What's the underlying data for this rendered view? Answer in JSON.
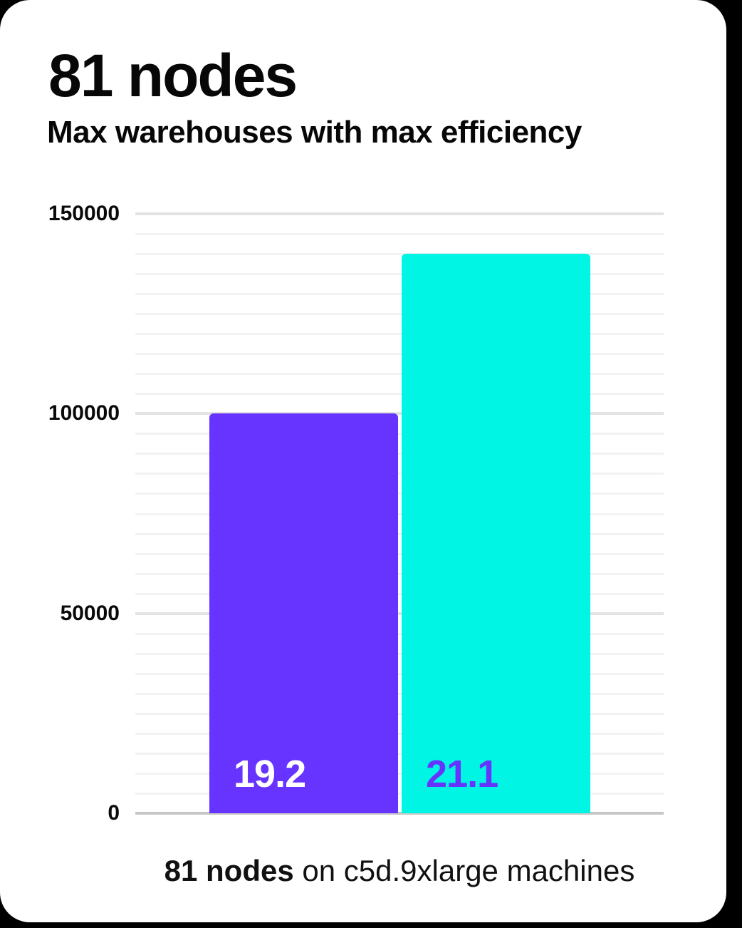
{
  "header": {
    "title": "81 nodes",
    "subtitle": "Max warehouses with max efficiency"
  },
  "chart_data": {
    "type": "bar",
    "title": "81 nodes",
    "subtitle": "Max warehouses with max efficiency",
    "categories": [
      "19.2",
      "21.1"
    ],
    "values": [
      100000,
      140000
    ],
    "xlabel": "",
    "ylabel": "",
    "ylim": [
      0,
      150000
    ],
    "y_ticks": [
      150000,
      100000,
      50000,
      0
    ],
    "y_minor_step": 5000,
    "y_major_step": 50000,
    "grid": "horizontal",
    "legend": "none",
    "bar_colors": [
      "#6633FF",
      "#00F5E4"
    ],
    "bar_label_colors": [
      "#FFFFFF",
      "#6633FF"
    ],
    "caption": "81 nodes on c5d.9xlarge machines"
  },
  "caption": {
    "highlight": "81 nodes",
    "rest": " on c5d.9xlarge machines"
  },
  "colors": {
    "background": "#000000",
    "card": "#FFFFFF",
    "text": "#0A0A0A",
    "grid_minor": "#F2F2F2",
    "grid_major": "#E3E3E3",
    "axis": "#C7C7C7",
    "accent_purple": "#6633FF",
    "accent_cyan": "#00F5E4"
  }
}
